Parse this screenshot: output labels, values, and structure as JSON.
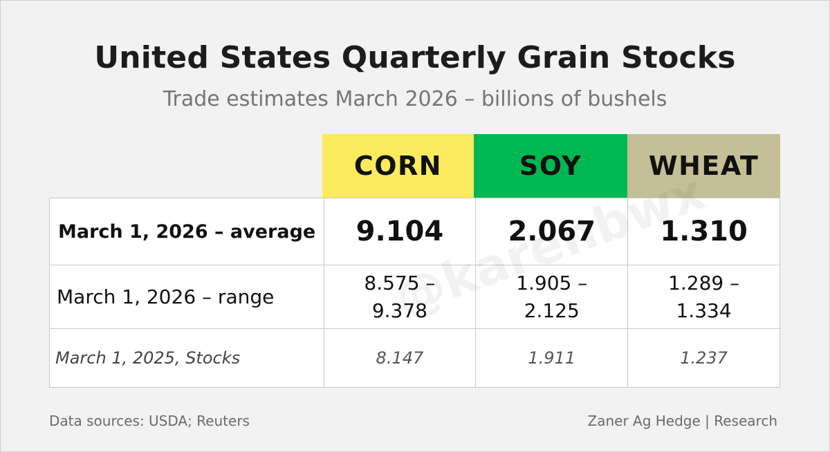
{
  "title": "United States Quarterly Grain Stocks",
  "subtitle": "Trade estimates March 2026 – billions of bushels",
  "columns": [
    {
      "label": "CORN",
      "color": "#fbeb5d"
    },
    {
      "label": "SOY",
      "color": "#00b852"
    },
    {
      "label": "WHEAT",
      "color": "#c5bf97"
    }
  ],
  "rows": {
    "average": {
      "label": "March 1, 2026 – average",
      "values": [
        "9.104",
        "2.067",
        "1.310"
      ]
    },
    "range": {
      "label": "March 1, 2026 – range",
      "values": [
        {
          "low": "8.575 –",
          "high": "9.378"
        },
        {
          "low": "1.905 –",
          "high": "2.125"
        },
        {
          "low": "1.289 –",
          "high": "1.334"
        }
      ]
    },
    "previous": {
      "label": "March 1, 2025, Stocks",
      "values": [
        "8.147",
        "1.911",
        "1.237"
      ]
    }
  },
  "watermark": "@karenbwx",
  "footer": {
    "sources": "Data sources: USDA; Reuters",
    "credit": "Zaner Ag Hedge | Research"
  }
}
